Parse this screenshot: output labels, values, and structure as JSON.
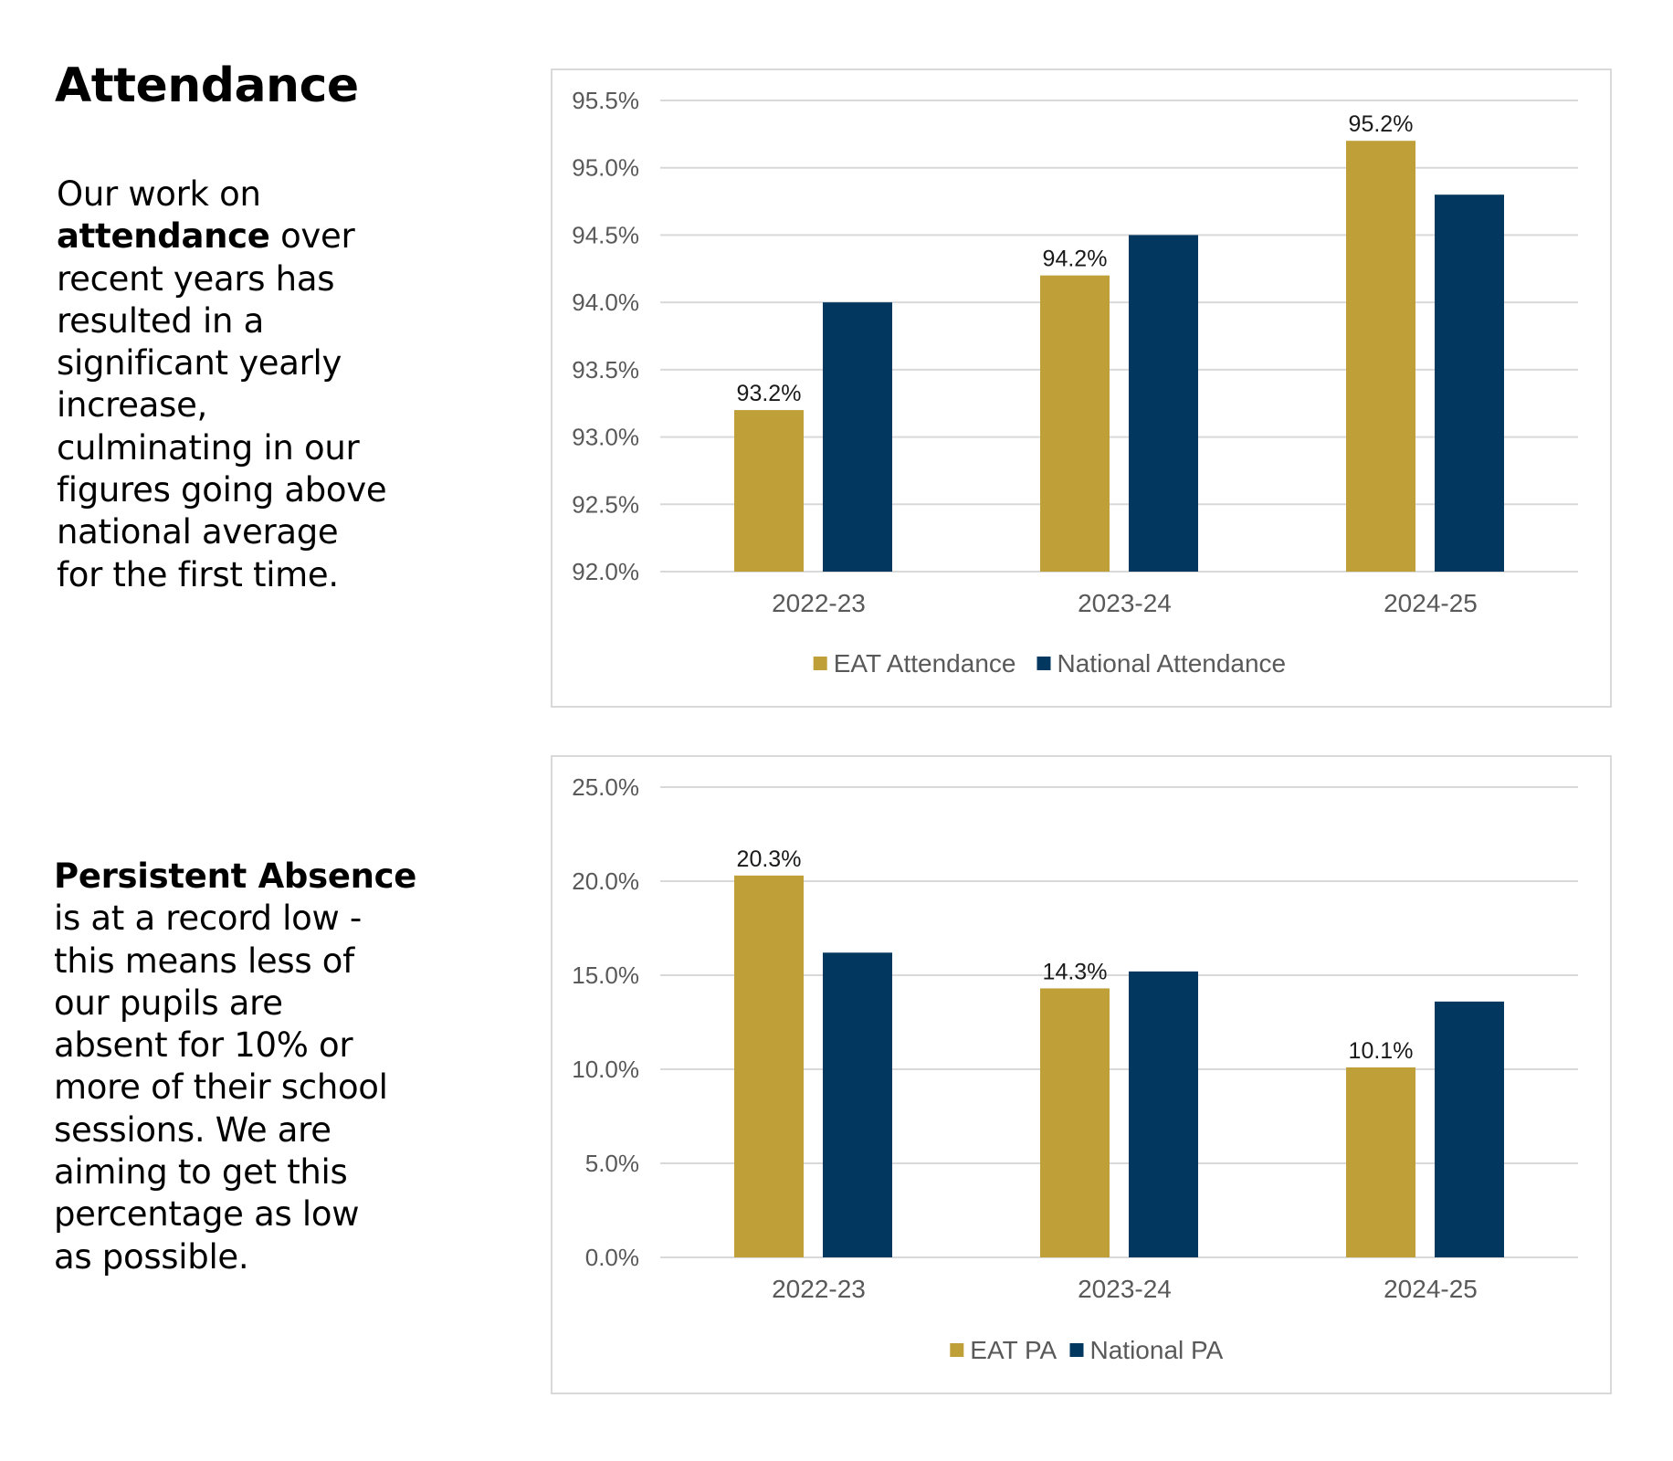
{
  "heading": "Attendance",
  "attendance_text": {
    "lines": [
      [
        {
          "t": "Our work on",
          "b": false
        }
      ],
      [
        {
          "t": "attendance",
          "b": true
        },
        {
          "t": " over",
          "b": false
        }
      ],
      [
        {
          "t": "recent years has",
          "b": false
        }
      ],
      [
        {
          "t": "resulted in a",
          "b": false
        }
      ],
      [
        {
          "t": "significant yearly",
          "b": false
        }
      ],
      [
        {
          "t": "increase,",
          "b": false
        }
      ],
      [
        {
          "t": "culminating in our",
          "b": false
        }
      ],
      [
        {
          "t": "figures going above",
          "b": false
        }
      ],
      [
        {
          "t": "national average",
          "b": false
        }
      ],
      [
        {
          "t": "for the first time.",
          "b": false
        }
      ]
    ]
  },
  "absence_text": {
    "lines": [
      [
        {
          "t": "Persistent Absence",
          "b": true
        }
      ],
      [
        {
          "t": "is at a record low -",
          "b": false
        }
      ],
      [
        {
          "t": "this means less of",
          "b": false
        }
      ],
      [
        {
          "t": "our pupils are",
          "b": false
        }
      ],
      [
        {
          "t": "absent for 10% or",
          "b": false
        }
      ],
      [
        {
          "t": "more of their school",
          "b": false
        }
      ],
      [
        {
          "t": "sessions. We are",
          "b": false
        }
      ],
      [
        {
          "t": "aiming to get this",
          "b": false
        }
      ],
      [
        {
          "t": "percentage as low",
          "b": false
        }
      ],
      [
        {
          "t": "as possible.",
          "b": false
        }
      ]
    ]
  },
  "colors": {
    "eat": "#BE9F38",
    "national": "#02375F"
  },
  "chart_data": [
    {
      "id": "attendance",
      "type": "bar",
      "title": "",
      "xlabel": "",
      "ylabel": "",
      "categories": [
        "2022-23",
        "2023-24",
        "2024-25"
      ],
      "series": [
        {
          "name": "EAT Attendance",
          "values": [
            93.2,
            94.2,
            95.2
          ],
          "color": "#BE9F38",
          "data_labels": [
            "93.2%",
            "94.2%",
            "95.2%"
          ]
        },
        {
          "name": "National Attendance",
          "values": [
            94.0,
            94.5,
            94.8
          ],
          "color": "#02375F",
          "data_labels": null
        }
      ],
      "ylim": [
        92.0,
        95.5
      ],
      "yticks": [
        92.0,
        92.5,
        93.0,
        93.5,
        94.0,
        94.5,
        95.0,
        95.5
      ],
      "ytick_labels": [
        "92.0%",
        "92.5%",
        "93.0%",
        "93.5%",
        "94.0%",
        "94.5%",
        "95.0%",
        "95.5%"
      ],
      "grid": true,
      "legend": "bottom"
    },
    {
      "id": "absence",
      "type": "bar",
      "title": "",
      "xlabel": "",
      "ylabel": "",
      "categories": [
        "2022-23",
        "2023-24",
        "2024-25"
      ],
      "series": [
        {
          "name": "EAT PA",
          "values": [
            20.3,
            14.3,
            10.1
          ],
          "color": "#BE9F38",
          "data_labels": [
            "20.3%",
            "14.3%",
            "10.1%"
          ]
        },
        {
          "name": "National PA",
          "values": [
            16.2,
            15.2,
            13.6
          ],
          "color": "#02375F",
          "data_labels": null
        }
      ],
      "ylim": [
        0.0,
        25.0
      ],
      "yticks": [
        0.0,
        5.0,
        10.0,
        15.0,
        20.0,
        25.0
      ],
      "ytick_labels": [
        "0.0%",
        "5.0%",
        "10.0%",
        "15.0%",
        "20.0%",
        "25.0%"
      ],
      "grid": true,
      "legend": "bottom"
    }
  ]
}
